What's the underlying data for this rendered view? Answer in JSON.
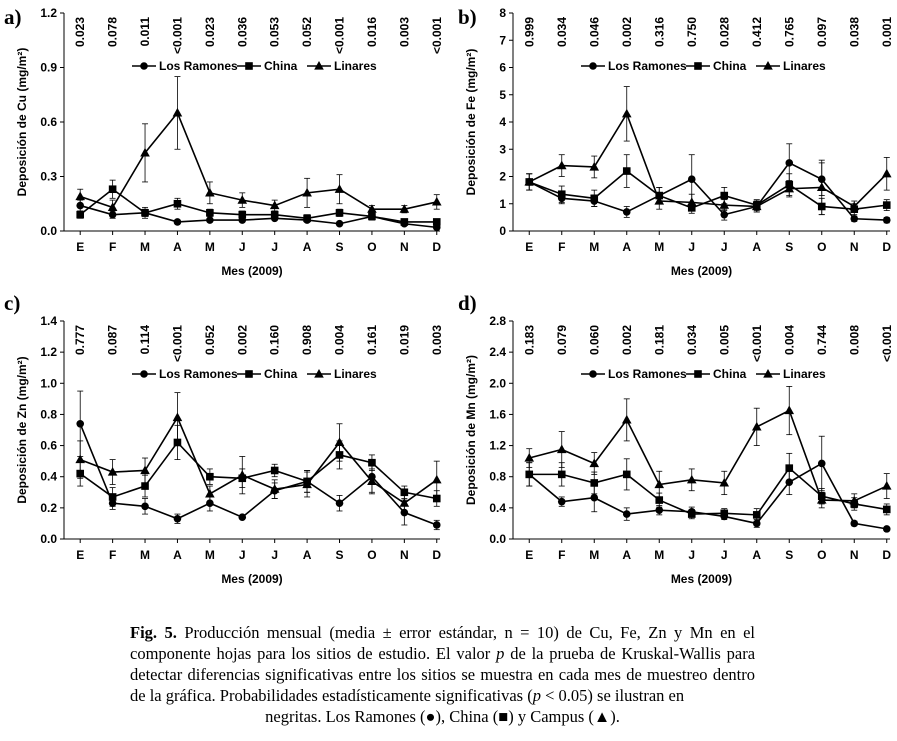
{
  "chart_data": [
    {
      "panel": "a)",
      "type": "line",
      "xlabel": "Mes (2009)",
      "ylabel": "Deposición de Cu (mg/m²)",
      "categories": [
        "E",
        "F",
        "M",
        "A",
        "M",
        "J",
        "J",
        "A",
        "S",
        "O",
        "N",
        "D"
      ],
      "ylim": [
        0,
        1.2
      ],
      "yticks": [
        "0.0",
        "0.3",
        "0.6",
        "0.9",
        "1.2"
      ],
      "pvalues": [
        "0.023",
        "0.078",
        "0.011",
        "<0.001",
        "0.023",
        "0.036",
        "0.053",
        "0.052",
        "<0.001",
        "0.016",
        "0.003",
        "<0.001"
      ],
      "series": [
        {
          "name": "Los Ramones",
          "marker": "circle",
          "values": [
            0.14,
            0.09,
            0.1,
            0.05,
            0.06,
            0.06,
            0.07,
            0.06,
            0.04,
            0.08,
            0.04,
            0.02
          ],
          "err": [
            0.03,
            0.02,
            0.02,
            0.01,
            0.01,
            0.01,
            0.01,
            0.01,
            0.01,
            0.02,
            0.01,
            0.01
          ]
        },
        {
          "name": "China",
          "marker": "square",
          "values": [
            0.09,
            0.23,
            0.1,
            0.15,
            0.1,
            0.09,
            0.09,
            0.07,
            0.1,
            0.08,
            0.05,
            0.05
          ],
          "err": [
            0.02,
            0.05,
            0.03,
            0.03,
            0.02,
            0.02,
            0.02,
            0.02,
            0.02,
            0.02,
            0.01,
            0.01
          ]
        },
        {
          "name": "Linares",
          "marker": "triangle",
          "values": [
            0.19,
            0.13,
            0.43,
            0.65,
            0.21,
            0.17,
            0.14,
            0.21,
            0.23,
            0.12,
            0.12,
            0.16
          ],
          "err": [
            0.04,
            0.04,
            0.16,
            0.2,
            0.06,
            0.04,
            0.03,
            0.08,
            0.08,
            0.02,
            0.02,
            0.04
          ]
        }
      ]
    },
    {
      "panel": "b)",
      "type": "line",
      "xlabel": "Mes (2009)",
      "ylabel": "Deposición de Fe (mg/m²)",
      "categories": [
        "E",
        "F",
        "M",
        "A",
        "M",
        "J",
        "J",
        "A",
        "S",
        "O",
        "N",
        "D"
      ],
      "ylim": [
        0,
        8
      ],
      "yticks": [
        "0",
        "1",
        "2",
        "3",
        "4",
        "5",
        "6",
        "7",
        "8"
      ],
      "pvalues": [
        "0.999",
        "0.034",
        "0.046",
        "0.002",
        "0.316",
        "0.750",
        "0.028",
        "0.412",
        "0.765",
        "0.097",
        "0.038",
        "0.001"
      ],
      "series": [
        {
          "name": "Los Ramones",
          "marker": "circle",
          "values": [
            1.8,
            1.2,
            1.1,
            0.7,
            1.3,
            1.9,
            0.6,
            0.9,
            2.5,
            1.9,
            0.45,
            0.4
          ],
          "err": [
            0.3,
            0.2,
            0.2,
            0.2,
            0.3,
            0.9,
            0.2,
            0.2,
            0.7,
            0.6,
            0.1,
            0.1
          ]
        },
        {
          "name": "China",
          "marker": "square",
          "values": [
            1.8,
            1.35,
            1.2,
            2.2,
            1.3,
            0.85,
            1.3,
            0.95,
            1.7,
            0.9,
            0.8,
            0.95
          ],
          "err": [
            0.3,
            0.3,
            0.3,
            0.6,
            0.3,
            0.2,
            0.3,
            0.2,
            0.4,
            0.3,
            0.2,
            0.2
          ]
        },
        {
          "name": "Linares",
          "marker": "triangle",
          "values": [
            1.8,
            2.4,
            2.35,
            4.3,
            1.1,
            1.05,
            0.95,
            0.9,
            1.55,
            1.6,
            0.9,
            2.1
          ],
          "err": [
            0.3,
            0.4,
            0.4,
            1.0,
            0.3,
            0.3,
            0.2,
            0.2,
            0.3,
            1.0,
            0.2,
            0.6
          ]
        }
      ]
    },
    {
      "panel": "c)",
      "type": "line",
      "xlabel": "Mes (2009)",
      "ylabel": "Deposición de Zn (mg/m²)",
      "categories": [
        "E",
        "F",
        "M",
        "A",
        "M",
        "J",
        "J",
        "A",
        "S",
        "O",
        "N",
        "D"
      ],
      "ylim": [
        0,
        1.4
      ],
      "yticks": [
        "0.0",
        "0.2",
        "0.4",
        "0.6",
        "0.8",
        "1.0",
        "1.2",
        "1.4"
      ],
      "pvalues": [
        "0.777",
        "0.087",
        "0.114",
        "<0.001",
        "0.052",
        "0.002",
        "0.160",
        "0.908",
        "0.004",
        "0.161",
        "0.019",
        "0.003"
      ],
      "series": [
        {
          "name": "Los Ramones",
          "marker": "circle",
          "values": [
            0.74,
            0.23,
            0.21,
            0.13,
            0.23,
            0.14,
            0.31,
            0.37,
            0.23,
            0.4,
            0.17,
            0.09
          ],
          "err": [
            0.21,
            0.04,
            0.05,
            0.03,
            0.05,
            0.01,
            0.05,
            0.07,
            0.05,
            0.1,
            0.08,
            0.03
          ]
        },
        {
          "name": "China",
          "marker": "square",
          "values": [
            0.42,
            0.27,
            0.34,
            0.62,
            0.4,
            0.39,
            0.44,
            0.37,
            0.54,
            0.49,
            0.3,
            0.26
          ],
          "err": [
            0.08,
            0.06,
            0.07,
            0.11,
            0.05,
            0.06,
            0.04,
            0.07,
            0.09,
            0.05,
            0.04,
            0.05
          ]
        },
        {
          "name": "Linares",
          "marker": "triangle",
          "values": [
            0.51,
            0.43,
            0.44,
            0.78,
            0.29,
            0.41,
            0.32,
            0.35,
            0.62,
            0.37,
            0.23,
            0.38
          ],
          "err": [
            0.12,
            0.08,
            0.08,
            0.16,
            0.05,
            0.12,
            0.06,
            0.08,
            0.12,
            0.08,
            0.05,
            0.12
          ]
        }
      ]
    },
    {
      "panel": "d)",
      "type": "line",
      "xlabel": "Mes (2009)",
      "ylabel": "Deposición de Mn (mg/m²)",
      "categories": [
        "E",
        "F",
        "M",
        "A",
        "M",
        "J",
        "J",
        "A",
        "S",
        "O",
        "N",
        "D"
      ],
      "ylim": [
        0,
        2.8
      ],
      "yticks": [
        "0.0",
        "0.4",
        "0.8",
        "1.2",
        "1.6",
        "2.0",
        "2.4",
        "2.8"
      ],
      "pvalues": [
        "0.183",
        "0.079",
        "0.060",
        "0.002",
        "0.181",
        "0.034",
        "0.005",
        "<0.001",
        "0.004",
        "0.744",
        "0.008",
        "<0.001"
      ],
      "series": [
        {
          "name": "Los Ramones",
          "marker": "circle",
          "values": [
            0.83,
            0.48,
            0.53,
            0.32,
            0.37,
            0.35,
            0.29,
            0.2,
            0.73,
            0.97,
            0.2,
            0.13
          ],
          "err": [
            0.15,
            0.06,
            0.18,
            0.08,
            0.06,
            0.06,
            0.04,
            0.05,
            0.16,
            0.35,
            0.03,
            0.02
          ]
        },
        {
          "name": "China",
          "marker": "square",
          "values": [
            0.83,
            0.83,
            0.72,
            0.83,
            0.5,
            0.32,
            0.33,
            0.31,
            0.91,
            0.55,
            0.45,
            0.38
          ],
          "err": [
            0.15,
            0.15,
            0.14,
            0.2,
            0.09,
            0.06,
            0.06,
            0.08,
            0.19,
            0.1,
            0.08,
            0.07
          ]
        },
        {
          "name": "Linares",
          "marker": "triangle",
          "values": [
            1.04,
            1.15,
            0.97,
            1.53,
            0.7,
            0.76,
            0.72,
            1.44,
            1.65,
            0.5,
            0.49,
            0.68
          ],
          "err": [
            0.12,
            0.23,
            0.14,
            0.27,
            0.17,
            0.14,
            0.15,
            0.24,
            0.31,
            0.1,
            0.09,
            0.16
          ]
        }
      ]
    }
  ],
  "caption": {
    "label": "Fig. 5.",
    "text_main": "Producción mensual (media ± error estándar, n = 10) de Cu, Fe, Zn y Mn en el componente hojas para los sitios de estudio. El valor",
    "p_symbol": "p",
    "text_mid": "de la prueba de Kruskal-Wallis para detectar diferencias significativas entre los sitios se muestra en cada mes de muestreo dentro de la gráfica. Probabilidades estadísticamente significativas (",
    "p_symbol_2": "p",
    "text_after_p": "< 0.05) se ilustran en",
    "text_end": "negritas. Los Ramones (●), China (■) y Campus (▲)."
  }
}
